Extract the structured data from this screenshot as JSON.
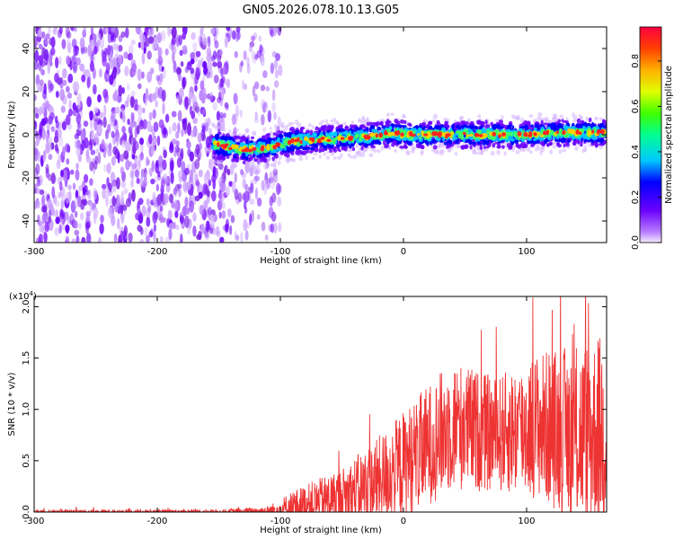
{
  "chart_data": [
    {
      "type": "heatmap",
      "title": "GN05.2026.078.10.13.G05",
      "xlabel": "Height of straight line (km)",
      "ylabel": "Frequency (Hz)",
      "xlim": [
        -300,
        165
      ],
      "ylim": [
        -50,
        50
      ],
      "xticks": [
        "-300",
        "-200",
        "-100",
        "0",
        "100"
      ],
      "yticks": [
        "40",
        "20",
        "0",
        "-20",
        "-40"
      ],
      "colorbar": {
        "label": "Normalized spectral amplitude",
        "ticks": [
          "0.0",
          "0.2",
          "0.4",
          "0.6",
          "0.8"
        ],
        "range": [
          0,
          0.95
        ]
      },
      "features": {
        "noise_region_x": [
          -300,
          -100
        ],
        "signal_ridge": [
          {
            "x": -155,
            "f": -4
          },
          {
            "x": -130,
            "f": -7
          },
          {
            "x": -110,
            "f": -6
          },
          {
            "x": -90,
            "f": -3
          },
          {
            "x": -60,
            "f": -2
          },
          {
            "x": -30,
            "f": -1
          },
          {
            "x": -10,
            "f": 1
          },
          {
            "x": 0,
            "f": 0
          },
          {
            "x": 30,
            "f": 0
          },
          {
            "x": 60,
            "f": 0
          },
          {
            "x": 100,
            "f": 0
          },
          {
            "x": 130,
            "f": 1
          },
          {
            "x": 165,
            "f": 1
          }
        ]
      }
    },
    {
      "type": "line",
      "xlabel": "Height of straight line (km)",
      "ylabel": "SNR (10 * v/v)",
      "exponent_label": "(x10",
      "exponent": "4",
      "exponent_close": ")",
      "xlim": [
        -300,
        165
      ],
      "ylim": [
        0,
        2.1
      ],
      "xticks": [
        "-300",
        "-200",
        "-100",
        "0",
        "100"
      ],
      "yticks": [
        "0.0",
        "0.5",
        "1.0",
        "1.5",
        "2.0"
      ],
      "color": "#ee3333",
      "envelope": [
        {
          "x": -300,
          "base": 0.0,
          "amp": 0.03
        },
        {
          "x": -150,
          "base": 0.0,
          "amp": 0.03
        },
        {
          "x": -110,
          "base": 0.01,
          "amp": 0.06
        },
        {
          "x": -90,
          "base": 0.05,
          "amp": 0.2
        },
        {
          "x": -50,
          "base": 0.15,
          "amp": 0.35
        },
        {
          "x": -20,
          "base": 0.3,
          "amp": 0.55
        },
        {
          "x": 10,
          "base": 0.55,
          "amp": 0.7
        },
        {
          "x": 40,
          "base": 0.85,
          "amp": 0.8
        },
        {
          "x": 75,
          "base": 0.75,
          "amp": 0.7
        },
        {
          "x": 110,
          "base": 0.85,
          "amp": 0.9
        },
        {
          "x": 140,
          "base": 0.75,
          "amp": 1.1
        },
        {
          "x": 165,
          "base": 0.8,
          "amp": 1.2
        }
      ]
    }
  ]
}
